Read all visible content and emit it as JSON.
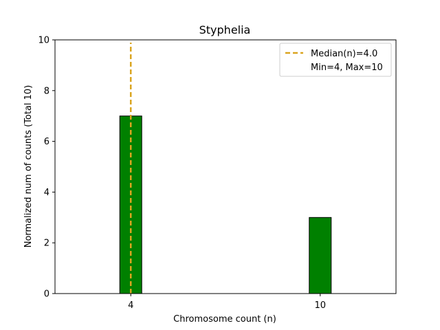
{
  "chart_data": {
    "type": "bar",
    "title": "Styphelia",
    "xlabel": "Chromosome count (n)",
    "ylabel": "Normalized num of counts      (Total 10)",
    "x_categories": [
      "4",
      "10"
    ],
    "series": [
      {
        "values": [
          7,
          3
        ],
        "color": "#008000"
      }
    ],
    "ylim": [
      0,
      10
    ],
    "yticks": [
      0,
      2,
      4,
      6,
      8,
      10
    ],
    "median_line": {
      "x": 4,
      "color": "#DAA520"
    },
    "legend": {
      "placement": "top-right",
      "entries": [
        "Median(n)=4.0",
        "Min=4, Max=10"
      ]
    },
    "grid": false
  }
}
